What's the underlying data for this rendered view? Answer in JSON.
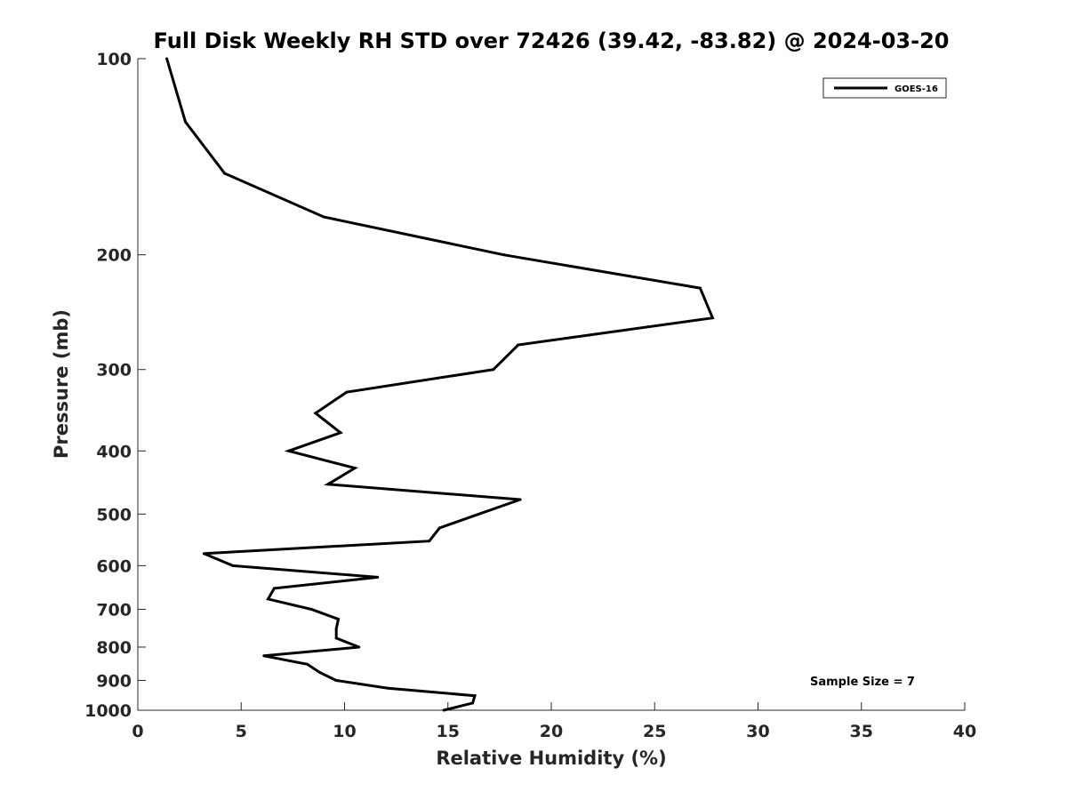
{
  "chart_data": {
    "type": "line",
    "title": "Full Disk Weekly RH STD over 72426 (39.42, -83.82) @ 2024-03-20",
    "xlabel": "Relative Humidity (%)",
    "ylabel": "Pressure (mb)",
    "xlim": [
      0,
      40
    ],
    "ylim": [
      100,
      1000
    ],
    "y_scale": "log",
    "y_reversed": true,
    "grid": false,
    "legend_position": "top-right",
    "xticks": [
      0,
      5,
      10,
      15,
      20,
      25,
      30,
      35,
      40
    ],
    "yticks": [
      100,
      200,
      300,
      400,
      500,
      600,
      700,
      800,
      900,
      1000
    ],
    "annotation": "Sample Size = 7",
    "series": [
      {
        "name": "GOES-16",
        "color": "#000000",
        "points": [
          {
            "x": 1.4,
            "p": 100
          },
          {
            "x": 2.3,
            "p": 125
          },
          {
            "x": 4.2,
            "p": 150
          },
          {
            "x": 9.0,
            "p": 175
          },
          {
            "x": 17.7,
            "p": 200
          },
          {
            "x": 27.2,
            "p": 225
          },
          {
            "x": 27.8,
            "p": 250
          },
          {
            "x": 18.4,
            "p": 275
          },
          {
            "x": 17.2,
            "p": 300
          },
          {
            "x": 10.1,
            "p": 325
          },
          {
            "x": 8.6,
            "p": 350
          },
          {
            "x": 9.8,
            "p": 375
          },
          {
            "x": 7.3,
            "p": 400
          },
          {
            "x": 10.5,
            "p": 425
          },
          {
            "x": 9.2,
            "p": 450
          },
          {
            "x": 18.5,
            "p": 475
          },
          {
            "x": 16.5,
            "p": 500
          },
          {
            "x": 14.6,
            "p": 525
          },
          {
            "x": 14.1,
            "p": 550
          },
          {
            "x": 3.2,
            "p": 575
          },
          {
            "x": 4.6,
            "p": 600
          },
          {
            "x": 11.6,
            "p": 625
          },
          {
            "x": 6.6,
            "p": 650
          },
          {
            "x": 6.3,
            "p": 675
          },
          {
            "x": 8.4,
            "p": 700
          },
          {
            "x": 9.7,
            "p": 725
          },
          {
            "x": 9.6,
            "p": 750
          },
          {
            "x": 9.6,
            "p": 775
          },
          {
            "x": 10.7,
            "p": 800
          },
          {
            "x": 6.1,
            "p": 825
          },
          {
            "x": 8.2,
            "p": 850
          },
          {
            "x": 8.8,
            "p": 875
          },
          {
            "x": 9.6,
            "p": 900
          },
          {
            "x": 12.1,
            "p": 925
          },
          {
            "x": 16.3,
            "p": 950
          },
          {
            "x": 16.2,
            "p": 975
          },
          {
            "x": 14.8,
            "p": 1000
          }
        ]
      }
    ]
  }
}
